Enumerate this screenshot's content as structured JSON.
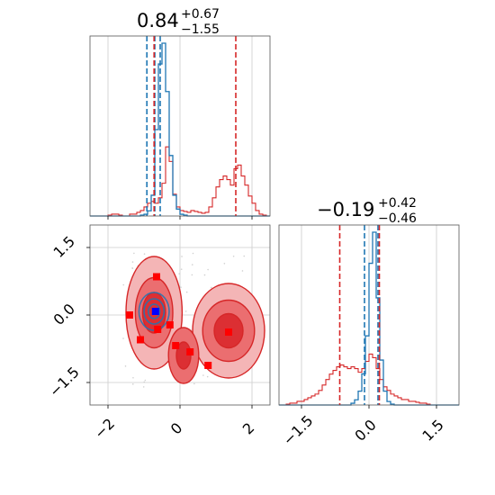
{
  "chart_data": {
    "type": "corner",
    "colors": {
      "series_a": "#1f77b4",
      "series_b": "#d62728",
      "grid": "#cccccc",
      "truth": "#0000ff",
      "samples": "#ff0000"
    },
    "title_top": {
      "value": "0.84",
      "plus": "+0.67",
      "minus": "−1.55"
    },
    "title_right": {
      "value": "−0.19",
      "plus": "+0.42",
      "minus": "−0.46"
    },
    "x_param1": {
      "range": [
        -2.5,
        2.5
      ],
      "ticks": [
        -2,
        0,
        2
      ],
      "tick_labels": [
        "−2",
        "0",
        "2"
      ]
    },
    "y_param2": {
      "range": [
        -2.0,
        2.0
      ],
      "ticks": [
        1.5,
        0.0,
        -1.5
      ],
      "tick_labels": [
        "1.5",
        "0.0",
        "−1.5"
      ]
    },
    "x_param2": {
      "range": [
        -2.0,
        2.0
      ],
      "ticks": [
        -1.5,
        0.0,
        1.5
      ],
      "tick_labels": [
        "−1.5",
        "0.0",
        "1.5"
      ]
    },
    "hist_param1": {
      "bin_edges_start": -2.5,
      "bin_width": 0.1,
      "series_a_counts": [
        0,
        0,
        0,
        0,
        0,
        0,
        0,
        0,
        0,
        0,
        0,
        0,
        0,
        0,
        0.005,
        0.01,
        0.03,
        0.12,
        0.5,
        0.88,
        1.0,
        0.72,
        0.35,
        0.12,
        0.04,
        0.01,
        0.005,
        0,
        0,
        0,
        0,
        0,
        0,
        0,
        0,
        0,
        0,
        0,
        0,
        0,
        0,
        0,
        0,
        0,
        0,
        0,
        0,
        0,
        0,
        0
      ],
      "series_b_counts": [
        0,
        0,
        0,
        0,
        0,
        0.005,
        0.01,
        0.01,
        0.005,
        0,
        0,
        0.01,
        0.01,
        0.02,
        0.03,
        0.05,
        0.07,
        0.08,
        0.07,
        0.1,
        0.18,
        0.38,
        0.3,
        0.12,
        0.05,
        0.03,
        0.025,
        0.02,
        0.03,
        0.025,
        0.02,
        0.015,
        0.02,
        0.05,
        0.1,
        0.16,
        0.2,
        0.22,
        0.2,
        0.17,
        0.26,
        0.28,
        0.22,
        0.17,
        0.11,
        0.07,
        0.03,
        0.01,
        0.005,
        0
      ],
      "series_a_quantiles": [
        -0.92,
        -0.7,
        -0.55
      ],
      "series_b_quantiles": [
        -0.72,
        1.55
      ]
    },
    "hist_param2": {
      "bin_edges_start": -2.0,
      "bin_width": 0.08,
      "series_a_counts": [
        0,
        0,
        0,
        0,
        0,
        0,
        0,
        0,
        0,
        0,
        0,
        0,
        0,
        0,
        0,
        0,
        0,
        0,
        0,
        0,
        0.01,
        0.03,
        0.08,
        0.18,
        0.4,
        0.82,
        1.0,
        0.62,
        0.26,
        0.08,
        0.02,
        0.005,
        0,
        0,
        0,
        0,
        0,
        0,
        0,
        0,
        0,
        0,
        0,
        0,
        0,
        0,
        0,
        0,
        0,
        0
      ],
      "series_b_counts": [
        0,
        0,
        0.005,
        0.01,
        0.01,
        0.02,
        0.02,
        0.03,
        0.04,
        0.05,
        0.06,
        0.08,
        0.11,
        0.14,
        0.17,
        0.19,
        0.21,
        0.22,
        0.21,
        0.2,
        0.21,
        0.2,
        0.18,
        0.2,
        0.24,
        0.28,
        0.26,
        0.2,
        0.14,
        0.1,
        0.08,
        0.06,
        0.05,
        0.04,
        0.03,
        0.03,
        0.02,
        0.02,
        0.015,
        0.01,
        0.01,
        0.005,
        0,
        0,
        0,
        0,
        0,
        0,
        0,
        0
      ],
      "series_a_quantiles": [
        -0.1,
        0.2
      ],
      "series_b_quantiles": [
        -0.65,
        0.23
      ]
    },
    "truth_point": [
      -0.68,
      0.08
    ],
    "sample_points": [
      [
        -0.65,
        0.85
      ],
      [
        -1.4,
        0.0
      ],
      [
        -0.62,
        -0.32
      ],
      [
        -1.1,
        -0.55
      ],
      [
        -0.28,
        -0.22
      ],
      [
        -0.12,
        -0.68
      ],
      [
        0.28,
        -0.82
      ],
      [
        0.78,
        -1.12
      ],
      [
        1.35,
        -0.38
      ]
    ],
    "contours_b": [
      {
        "center": [
          -0.72,
          0.05
        ],
        "rx": [
          0.78,
          0.52,
          0.32
        ],
        "ry": [
          1.25,
          0.78,
          0.45
        ]
      },
      {
        "center": [
          1.35,
          -0.35
        ],
        "rx": [
          1.0,
          0.72,
          0.4
        ],
        "ry": [
          1.05,
          0.68,
          0.38
        ]
      },
      {
        "center": [
          0.1,
          -0.9
        ],
        "rx": [
          0.42,
          0.2
        ],
        "ry": [
          0.62,
          0.3
        ]
      }
    ],
    "contours_a": {
      "center": [
        -0.72,
        0.08
      ],
      "rx": [
        0.42,
        0.28,
        0.16
      ],
      "ry": [
        0.42,
        0.28,
        0.16
      ]
    }
  }
}
